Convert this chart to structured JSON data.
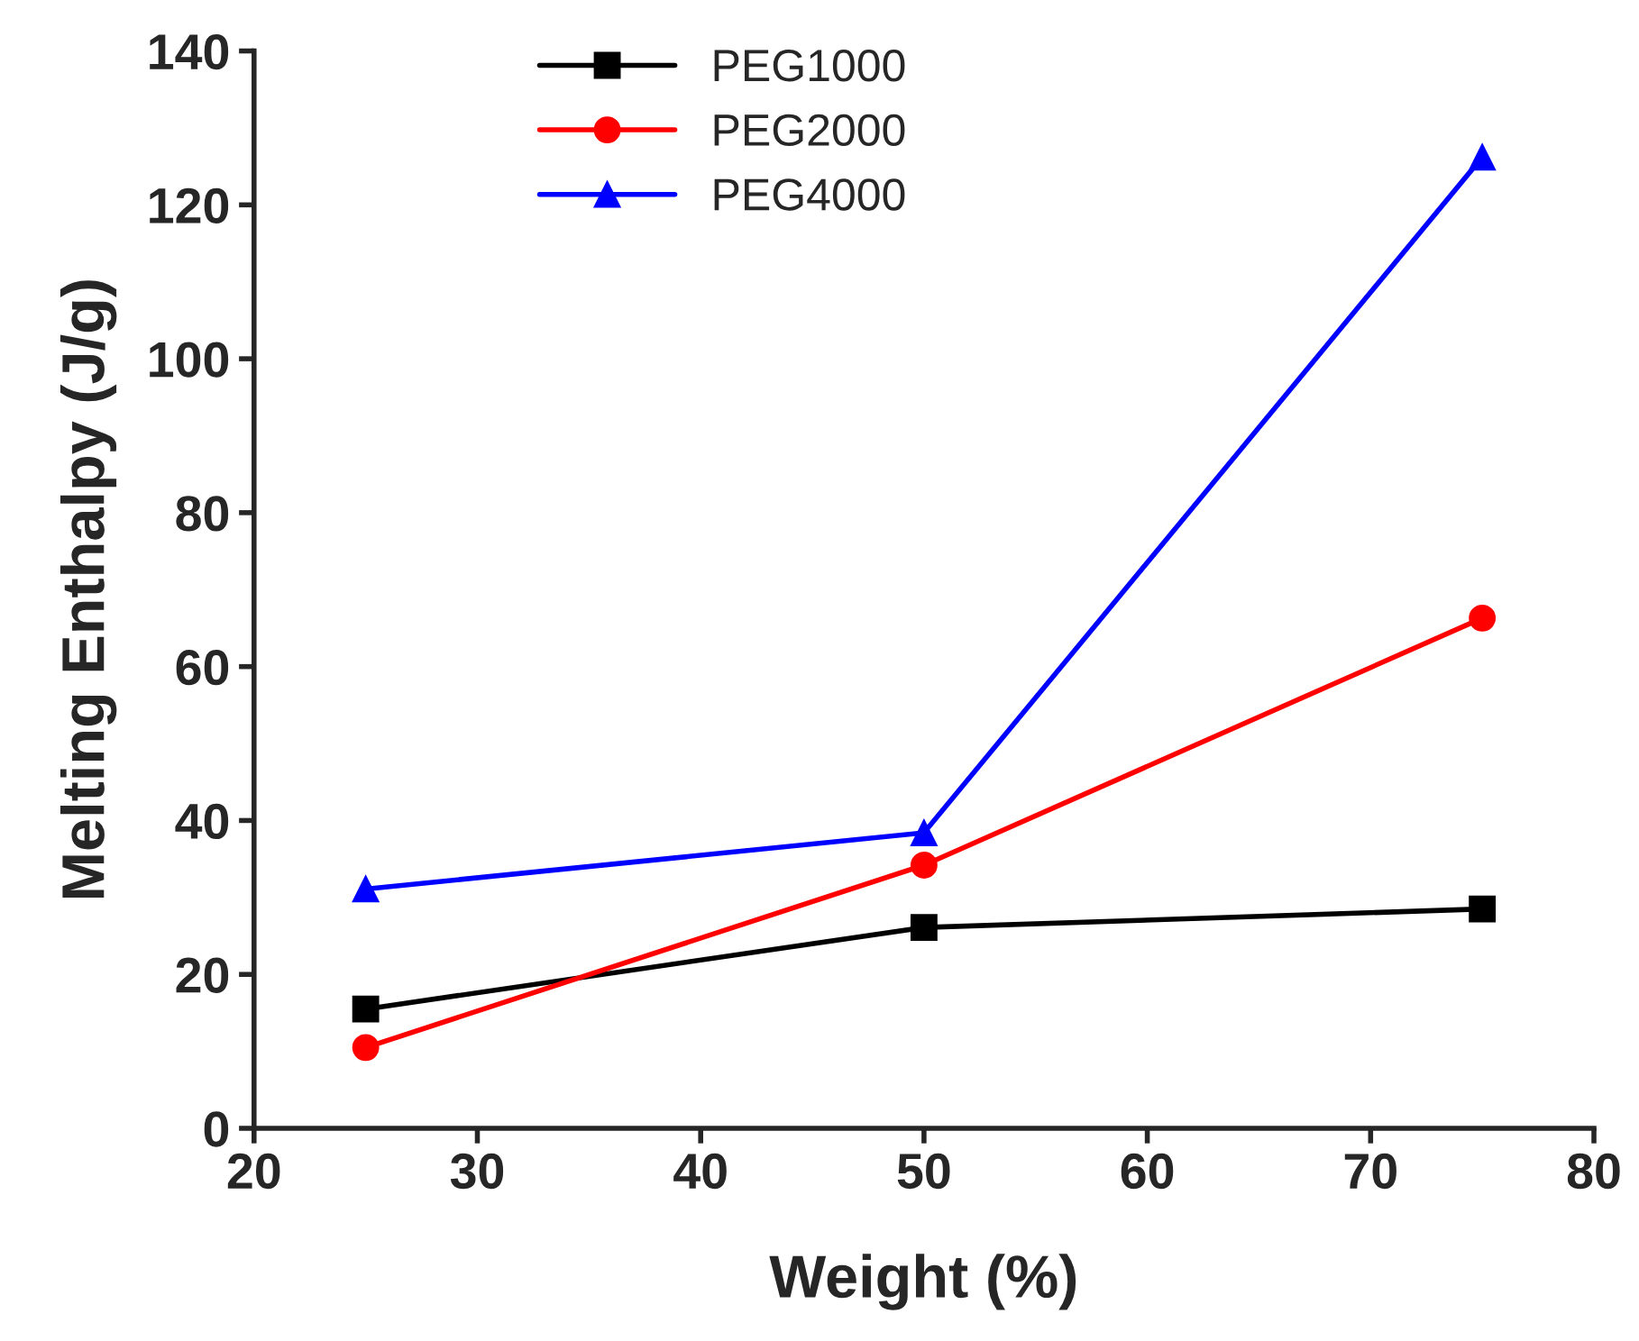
{
  "chart_data": {
    "type": "line",
    "xlabel": "Weight (%)",
    "ylabel": "Melting Enthalpy (J/g)",
    "x": [
      25,
      50,
      75
    ],
    "series": [
      {
        "name": "PEG1000",
        "color": "#000000",
        "marker": "square",
        "values": [
          15.5,
          26.1,
          28.5
        ]
      },
      {
        "name": "PEG2000",
        "color": "#ff0000",
        "marker": "circle",
        "values": [
          10.5,
          34.2,
          66.3
        ]
      },
      {
        "name": "PEG4000",
        "color": "#0000ff",
        "marker": "triangle",
        "values": [
          31.1,
          38.4,
          126.2
        ]
      }
    ],
    "xlim": [
      20,
      80
    ],
    "xticks": [
      20,
      30,
      40,
      50,
      60,
      70,
      80
    ],
    "ylim": [
      0,
      140
    ],
    "yticks": [
      0,
      20,
      40,
      60,
      80,
      100,
      120,
      140
    ],
    "legend": "top",
    "grid": false,
    "line_style": "solid"
  }
}
